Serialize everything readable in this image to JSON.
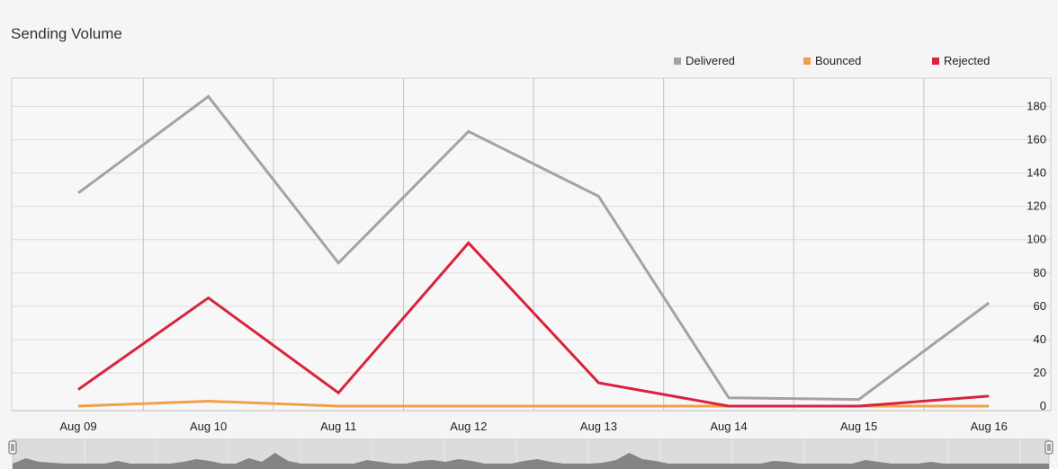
{
  "chart_data": {
    "type": "line",
    "title": "Sending Volume",
    "categories": [
      "Aug 09",
      "Aug 10",
      "Aug 11",
      "Aug 12",
      "Aug 13",
      "Aug 14",
      "Aug 15",
      "Aug 16"
    ],
    "ylim": [
      0,
      200
    ],
    "yticks": [
      0,
      20,
      40,
      60,
      80,
      100,
      120,
      140,
      160,
      180
    ],
    "grid": true,
    "legend_position": "top-right",
    "series": [
      {
        "name": "Delivered",
        "color": "#a3a3a3",
        "values": [
          128,
          186,
          86,
          165,
          126,
          5,
          4,
          62
        ]
      },
      {
        "name": "Bounced",
        "color": "#f0a04b",
        "values": [
          0,
          3,
          0,
          0,
          0,
          0,
          0,
          0
        ]
      },
      {
        "name": "Rejected",
        "color": "#d9233f",
        "values": [
          10,
          65,
          8,
          98,
          14,
          0,
          0,
          6
        ]
      }
    ]
  },
  "navigator": {
    "color": "#7a7a7a",
    "profile": [
      0,
      6,
      2,
      1,
      0,
      0,
      0,
      0,
      3,
      0,
      0,
      0,
      0,
      2,
      5,
      3,
      0,
      0,
      6,
      2,
      12,
      3,
      0,
      0,
      0,
      0,
      0,
      4,
      2,
      0,
      0,
      3,
      4,
      2,
      5,
      3,
      0,
      0,
      0,
      3,
      5,
      2,
      0,
      0,
      0,
      1,
      4,
      12,
      5,
      3,
      0,
      0,
      0,
      0,
      0,
      0,
      0,
      0,
      3,
      2,
      0,
      0,
      0,
      0,
      0,
      4,
      2,
      0,
      0,
      0,
      2,
      0,
      0,
      0,
      0,
      0,
      0,
      0,
      0,
      0
    ]
  }
}
